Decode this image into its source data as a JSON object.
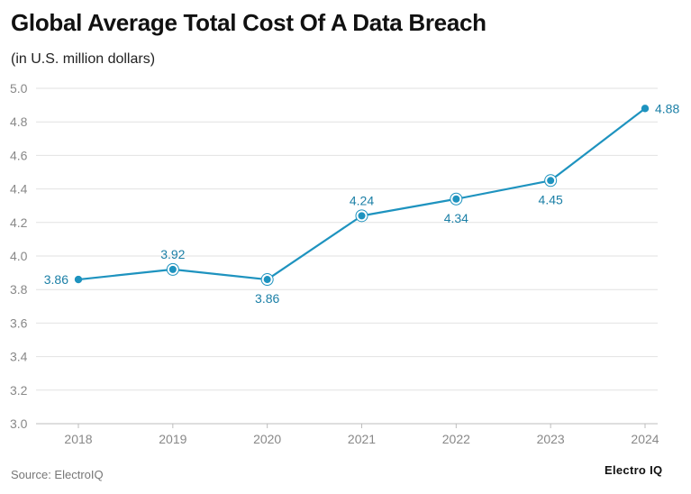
{
  "header": {
    "title": "Global Average Total Cost Of A Data Breach",
    "subtitle": "(in U.S. million dollars)"
  },
  "footer": {
    "source": "Source: ElectroIQ",
    "brand": "Electro IQ"
  },
  "colors": {
    "series": "#1e93bf",
    "label": "#1b7fa6",
    "grid": "#e2e2e2",
    "tick": "#888888"
  },
  "chart_data": {
    "type": "line",
    "title": "Global Average Total Cost Of A Data Breach",
    "subtitle": "(in U.S. million dollars)",
    "xlabel": "",
    "ylabel": "",
    "categories": [
      "2018",
      "2019",
      "2020",
      "2021",
      "2022",
      "2023",
      "2024"
    ],
    "series": [
      {
        "values": [
          3.86,
          3.92,
          3.86,
          4.24,
          4.34,
          4.45,
          4.88
        ],
        "labels": [
          "3.86",
          "3.92",
          "3.86",
          "4.24",
          "4.34",
          "4.45",
          "4.88"
        ]
      }
    ],
    "ylim": [
      3.0,
      5.0
    ],
    "yticks": [
      "3.0",
      "3.2",
      "3.4",
      "3.6",
      "3.8",
      "4.0",
      "4.2",
      "4.4",
      "4.6",
      "4.8",
      "5.0"
    ],
    "grid": true,
    "legend": "none"
  }
}
